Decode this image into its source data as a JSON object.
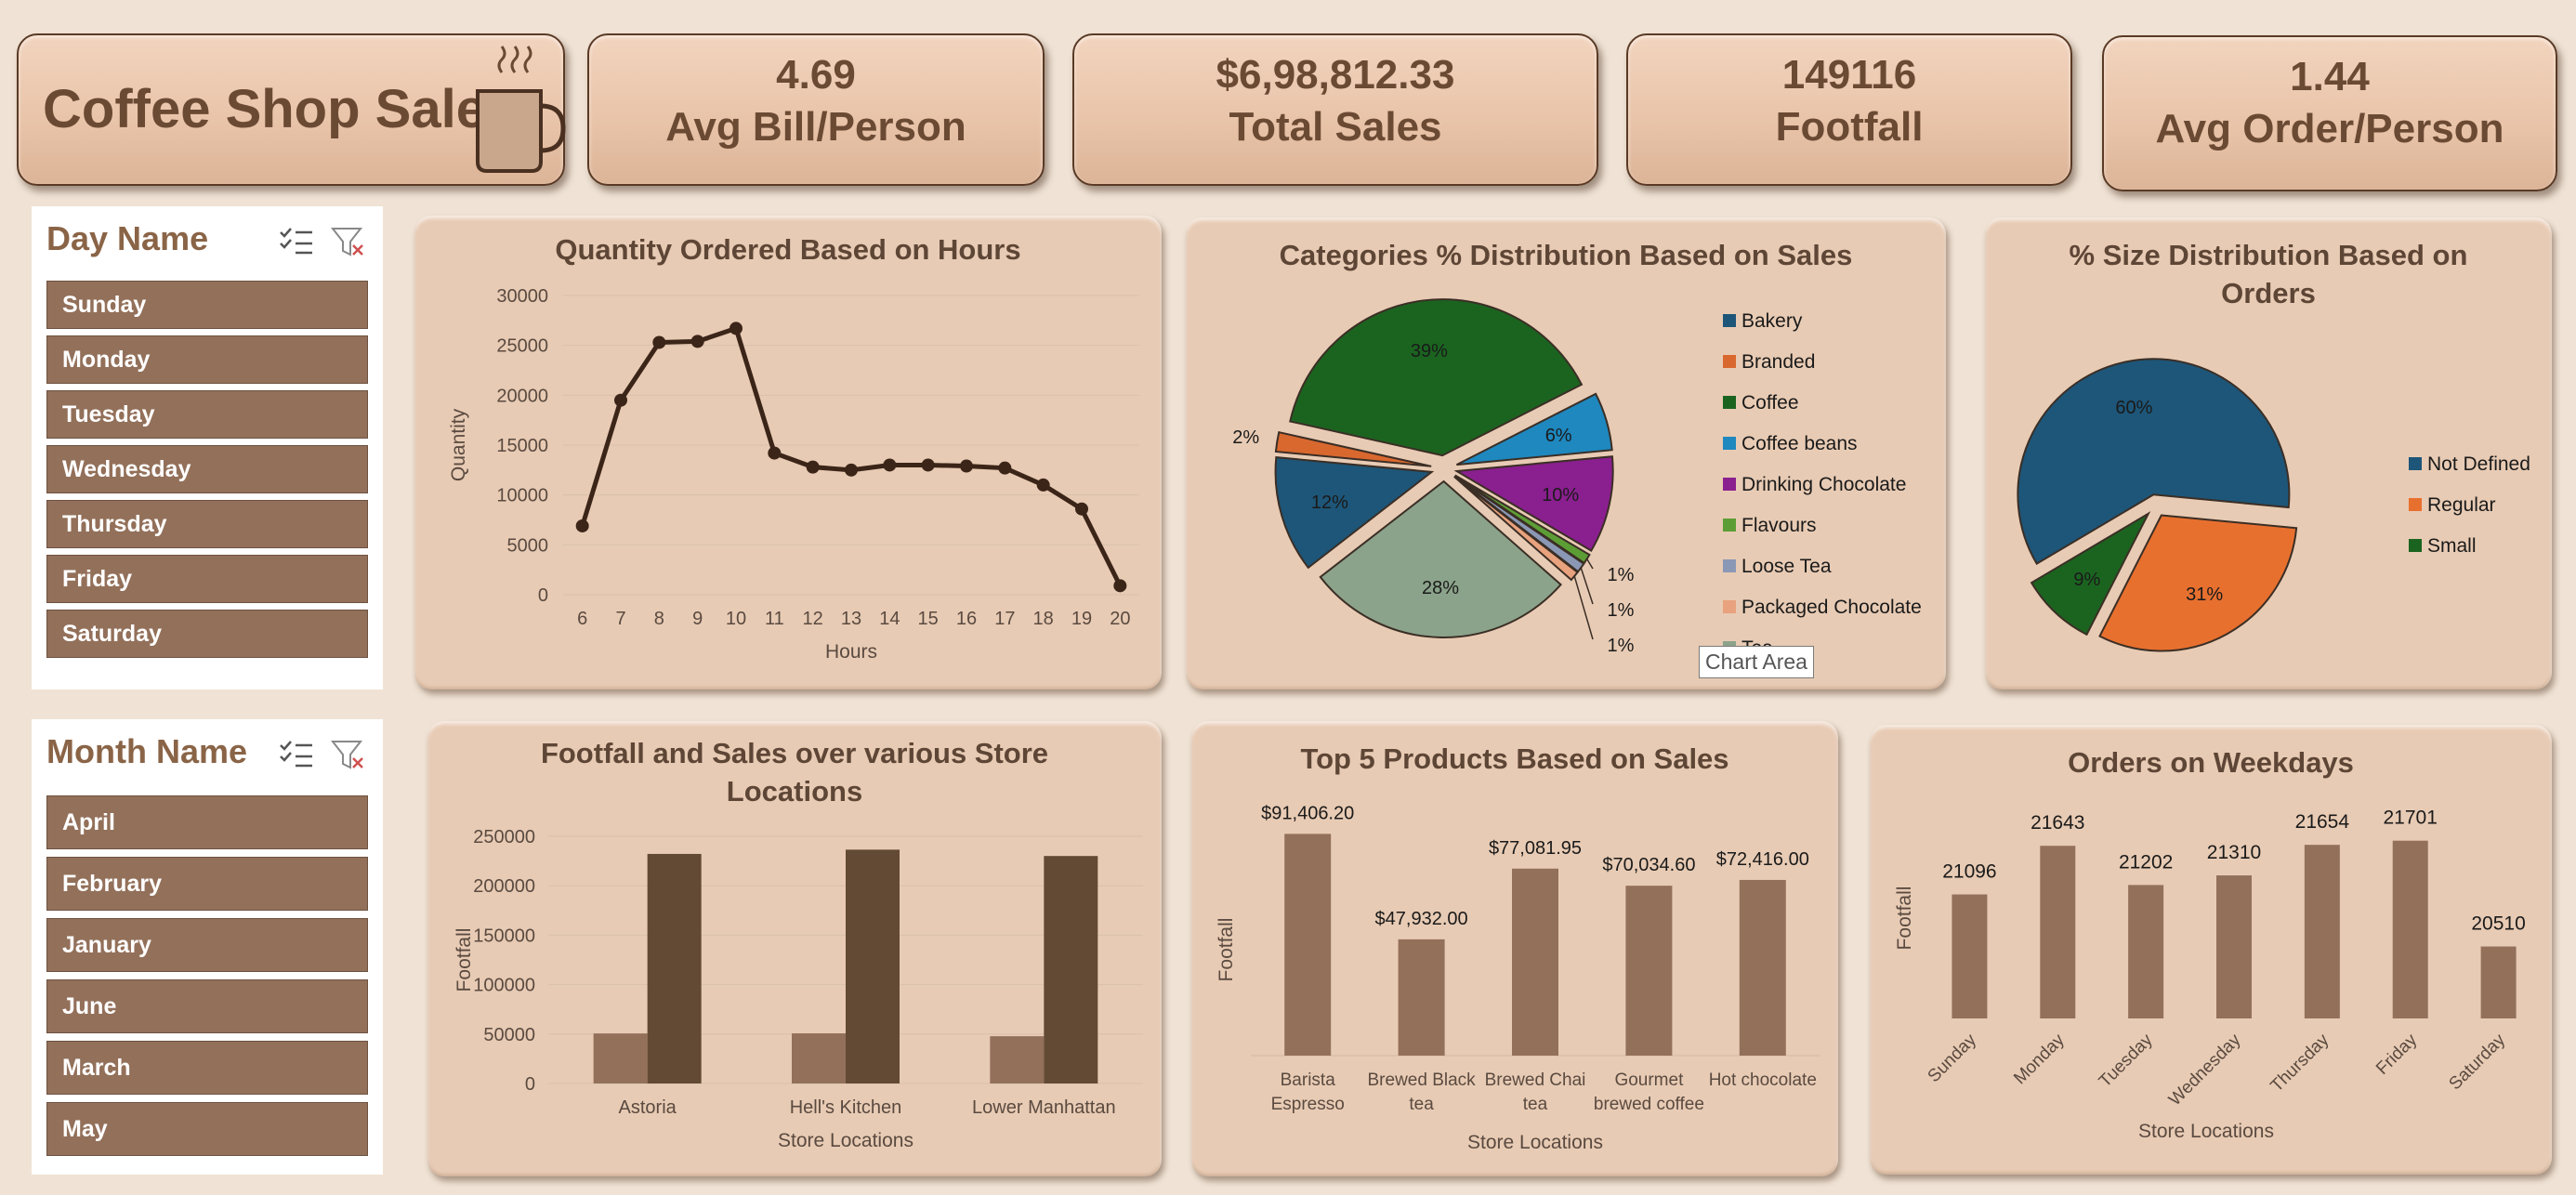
{
  "colors": {
    "background": "#f0e3d5",
    "panel": "#e8cbb4",
    "bar_brown": "#93705a",
    "bar_dark": "#634a34",
    "line": "#3b2518",
    "text_title": "#6b4a34"
  },
  "header": {
    "title": "Coffee Shop Sales",
    "icon": "coffee-cup-icon"
  },
  "kpis": [
    {
      "value": "4.69",
      "label": "Avg Bill/Person"
    },
    {
      "value": "$6,98,812.33",
      "label": "Total Sales"
    },
    {
      "value": "149116",
      "label": "Footfall"
    },
    {
      "value": "1.44",
      "label": "Avg Order/Person"
    }
  ],
  "day_slicer": {
    "title": "Day Name",
    "items": [
      "Sunday",
      "Monday",
      "Tuesday",
      "Wednesday",
      "Thursday",
      "Friday",
      "Saturday"
    ]
  },
  "month_slicer": {
    "title": "Month Name",
    "items": [
      "April",
      "February",
      "January",
      "June",
      "March",
      "May"
    ]
  },
  "tooltip": "Chart Area",
  "chart_data": [
    {
      "id": "hours",
      "type": "line",
      "title": "Quantity Ordered Based on Hours",
      "xlabel": "Hours",
      "ylabel": "Quantity",
      "x": [
        6,
        7,
        8,
        9,
        10,
        11,
        12,
        13,
        14,
        15,
        16,
        17,
        18,
        19,
        20
      ],
      "values": [
        6900,
        19500,
        25300,
        25400,
        26700,
        14200,
        12800,
        12500,
        13000,
        13000,
        12900,
        12700,
        11000,
        8600,
        900
      ],
      "ylim": [
        0,
        30000
      ],
      "yticks": [
        0,
        5000,
        10000,
        15000,
        20000,
        25000,
        30000
      ],
      "grid": true
    },
    {
      "id": "categories",
      "type": "pie",
      "title": "Categories % Distribution Based on Sales",
      "labels": [
        "Bakery",
        "Branded",
        "Coffee",
        "Coffee beans",
        "Drinking Chocolate",
        "Flavours",
        "Loose Tea",
        "Packaged Chocolate",
        "Tea"
      ],
      "values": [
        12,
        2,
        39,
        6,
        10,
        1,
        1,
        1,
        28
      ],
      "data_labels": [
        "12%",
        "2%",
        "39%",
        "6%",
        "10%",
        "1%",
        "1%",
        "1%",
        "28%"
      ],
      "colors": [
        "#1d5679",
        "#d9682f",
        "#1b6420",
        "#1e88bf",
        "#8a1f8f",
        "#5c9e35",
        "#8a98b5",
        "#e8a27d",
        "#8ba38a"
      ],
      "legend": "right"
    },
    {
      "id": "size",
      "type": "pie",
      "title": "% Size Distribution Based on Orders",
      "labels": [
        "Not Defined",
        "Regular",
        "Small"
      ],
      "values": [
        60,
        31,
        9
      ],
      "data_labels": [
        "60%",
        "31%",
        "9%"
      ],
      "colors": [
        "#1d5679",
        "#e8702f",
        "#1b6420"
      ],
      "legend": "right"
    },
    {
      "id": "locations",
      "type": "bar",
      "title": "Footfall and Sales over various Store Locations",
      "xlabel": "Store Locations",
      "ylabel": "Footfall",
      "categories": [
        "Astoria",
        "Hell's Kitchen",
        "Lower Manhattan"
      ],
      "series": [
        {
          "values": [
            50600,
            50700,
            47800
          ],
          "color": "#93705a"
        },
        {
          "values": [
            232200,
            236500,
            230100
          ],
          "color": "#634a34"
        }
      ],
      "ylim": [
        0,
        250000
      ],
      "yticks": [
        0,
        50000,
        100000,
        150000,
        200000,
        250000
      ],
      "grid": true
    },
    {
      "id": "products",
      "type": "bar",
      "title": "Top 5 Products Based on Sales",
      "xlabel": "Store Locations",
      "ylabel": "Footfall",
      "categories": [
        "Barista Espresso",
        "Brewed Black tea",
        "Brewed Chai tea",
        "Gourmet brewed coffee",
        "Hot chocolate"
      ],
      "category_lines": [
        [
          "Barista",
          "Espresso"
        ],
        [
          "Brewed Black",
          "tea"
        ],
        [
          "Brewed Chai",
          "tea"
        ],
        [
          "Gourmet",
          "brewed coffee"
        ],
        [
          "Hot chocolate"
        ]
      ],
      "values": [
        91406.2,
        47932.0,
        77081.95,
        70034.6,
        72416.0
      ],
      "data_labels": [
        "$91,406.20",
        "$47,932.00",
        "$77,081.95",
        "$70,034.60",
        "$72,416.00"
      ],
      "color": "#93705a"
    },
    {
      "id": "weekdays",
      "type": "bar",
      "title": "Orders on Weekdays",
      "xlabel": "Store Locations",
      "ylabel": "Footfall",
      "categories": [
        "Sunday",
        "Monday",
        "Tuesday",
        "Wednesday",
        "Thursday",
        "Friday",
        "Saturday"
      ],
      "values": [
        21096,
        21643,
        21202,
        21310,
        21654,
        21701,
        20510
      ],
      "data_labels": [
        "21096",
        "21643",
        "21202",
        "21310",
        "21654",
        "21701",
        "20510"
      ],
      "color": "#93705a"
    }
  ]
}
